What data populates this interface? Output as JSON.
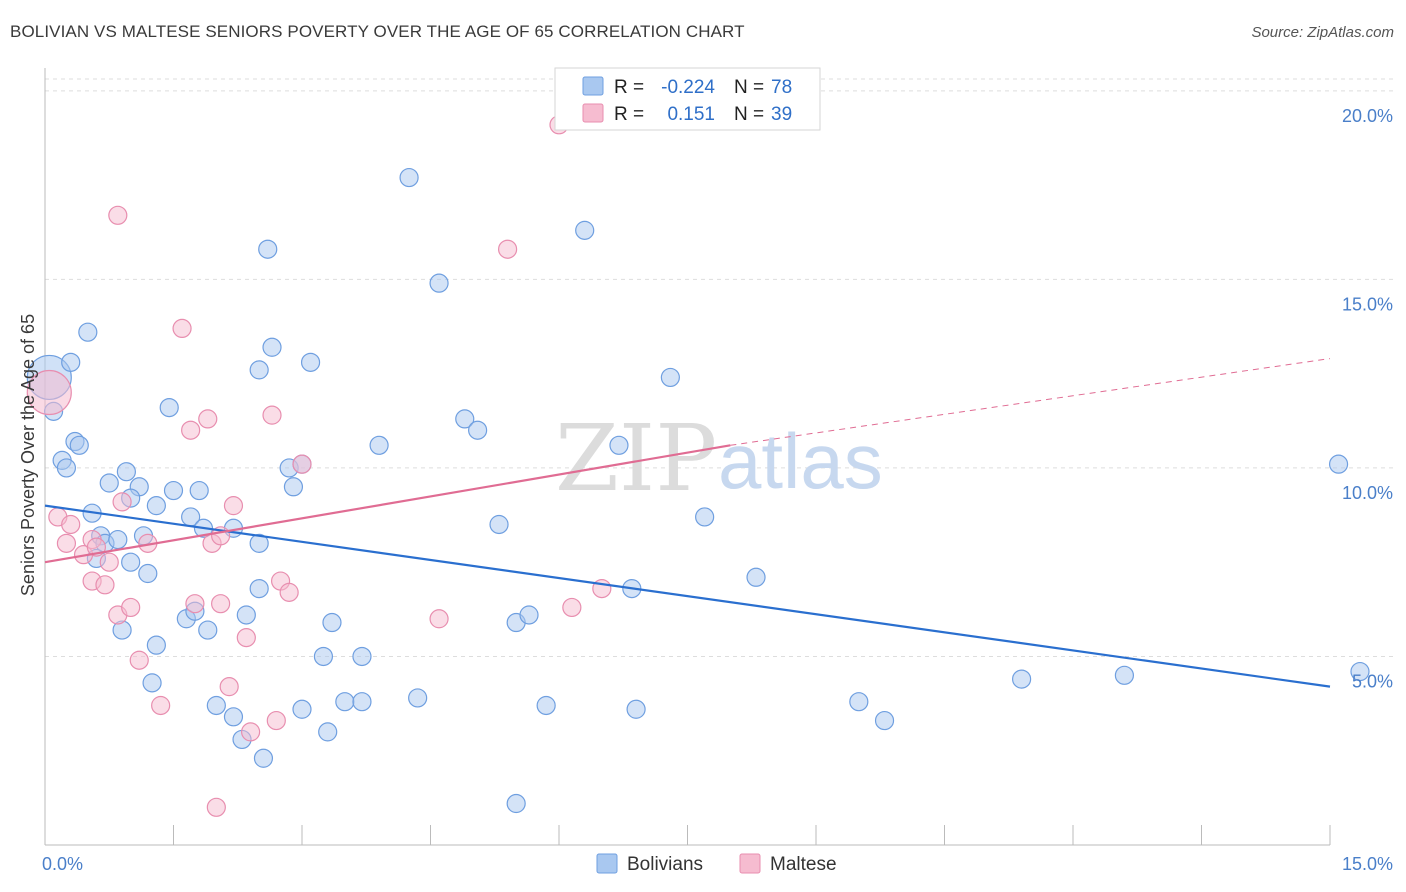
{
  "title": "BOLIVIAN VS MALTESE SENIORS POVERTY OVER THE AGE OF 65 CORRELATION CHART",
  "source": "Source: ZipAtlas.com",
  "watermark": {
    "zip": "ZIP",
    "atlas": "atlas"
  },
  "colors": {
    "bolivians_fill": "#a9c8f0",
    "bolivians_stroke": "#6f9fe0",
    "bolivians_line": "#2a6fcf",
    "maltese_fill": "#f6bcd0",
    "maltese_stroke": "#e88eaf",
    "maltese_line": "#e06c93",
    "grid": "#dddddd",
    "tick_text": "#4a7fc9"
  },
  "legend": {
    "rows": [
      {
        "r_label": "R =",
        "r_value": "-0.224",
        "n_label": "N =",
        "n_value": "78"
      },
      {
        "r_label": "R =",
        "r_value": "0.151",
        "n_label": "N =",
        "n_value": "39"
      }
    ]
  },
  "bottom_legend": {
    "bolivians": "Bolivians",
    "maltese": "Maltese"
  },
  "chart_data": {
    "type": "scatter",
    "ylabel": "Seniors Poverty Over the Age of 65",
    "xlim": [
      0,
      15
    ],
    "ylim": [
      0,
      20.5
    ],
    "x_tick_labels": [
      "0.0%",
      "15.0%"
    ],
    "y_ticks": [
      {
        "value": 5,
        "label": "5.0%"
      },
      {
        "value": 10,
        "label": "10.0%"
      },
      {
        "value": 15,
        "label": "15.0%"
      },
      {
        "value": 20,
        "label": "20.0%"
      }
    ],
    "grid": true,
    "legend_position": "top-center",
    "series": [
      {
        "name": "Bolivians",
        "trend": {
          "x0": 0,
          "y0": 9.0,
          "x1": 15,
          "y1": 4.2,
          "dashed_from": null
        },
        "points": [
          {
            "x": 0.05,
            "y": 12.4,
            "big": true
          },
          {
            "x": 0.1,
            "y": 11.5
          },
          {
            "x": 0.3,
            "y": 12.8
          },
          {
            "x": 0.5,
            "y": 13.6
          },
          {
            "x": 0.2,
            "y": 10.2
          },
          {
            "x": 0.35,
            "y": 10.7
          },
          {
            "x": 0.4,
            "y": 10.6
          },
          {
            "x": 0.25,
            "y": 10.0
          },
          {
            "x": 0.55,
            "y": 8.8
          },
          {
            "x": 0.75,
            "y": 9.6
          },
          {
            "x": 0.65,
            "y": 8.2
          },
          {
            "x": 0.7,
            "y": 8.0
          },
          {
            "x": 0.85,
            "y": 8.1
          },
          {
            "x": 0.95,
            "y": 9.9
          },
          {
            "x": 1.1,
            "y": 9.5
          },
          {
            "x": 1.15,
            "y": 8.2
          },
          {
            "x": 1.0,
            "y": 9.2
          },
          {
            "x": 0.6,
            "y": 7.6
          },
          {
            "x": 1.0,
            "y": 7.5
          },
          {
            "x": 1.45,
            "y": 11.6
          },
          {
            "x": 1.5,
            "y": 9.4
          },
          {
            "x": 1.3,
            "y": 9.0
          },
          {
            "x": 1.8,
            "y": 9.4
          },
          {
            "x": 1.7,
            "y": 8.7
          },
          {
            "x": 1.85,
            "y": 8.4
          },
          {
            "x": 1.2,
            "y": 7.2
          },
          {
            "x": 0.9,
            "y": 5.7
          },
          {
            "x": 1.3,
            "y": 5.3
          },
          {
            "x": 1.25,
            "y": 4.3
          },
          {
            "x": 1.65,
            "y": 6.0
          },
          {
            "x": 1.9,
            "y": 5.7
          },
          {
            "x": 2.2,
            "y": 8.4
          },
          {
            "x": 2.5,
            "y": 8.0
          },
          {
            "x": 2.5,
            "y": 6.8
          },
          {
            "x": 2.35,
            "y": 6.1
          },
          {
            "x": 2.5,
            "y": 12.6
          },
          {
            "x": 2.6,
            "y": 15.8
          },
          {
            "x": 2.65,
            "y": 13.2
          },
          {
            "x": 2.85,
            "y": 10.0
          },
          {
            "x": 2.9,
            "y": 9.5
          },
          {
            "x": 3.0,
            "y": 10.1
          },
          {
            "x": 3.1,
            "y": 12.8
          },
          {
            "x": 3.25,
            "y": 5.0
          },
          {
            "x": 3.35,
            "y": 5.9
          },
          {
            "x": 3.7,
            "y": 5.0
          },
          {
            "x": 3.5,
            "y": 3.8
          },
          {
            "x": 3.7,
            "y": 3.8
          },
          {
            "x": 2.0,
            "y": 3.7
          },
          {
            "x": 2.2,
            "y": 3.4
          },
          {
            "x": 2.3,
            "y": 2.8
          },
          {
            "x": 2.55,
            "y": 2.3
          },
          {
            "x": 3.0,
            "y": 3.6
          },
          {
            "x": 3.3,
            "y": 3.0
          },
          {
            "x": 3.9,
            "y": 10.6
          },
          {
            "x": 4.25,
            "y": 17.7
          },
          {
            "x": 4.6,
            "y": 14.9
          },
          {
            "x": 4.9,
            "y": 11.3
          },
          {
            "x": 5.05,
            "y": 11.0
          },
          {
            "x": 5.3,
            "y": 8.5
          },
          {
            "x": 5.5,
            "y": 5.9
          },
          {
            "x": 5.65,
            "y": 6.1
          },
          {
            "x": 5.85,
            "y": 3.7
          },
          {
            "x": 5.5,
            "y": 1.1
          },
          {
            "x": 6.3,
            "y": 16.3
          },
          {
            "x": 6.7,
            "y": 10.6
          },
          {
            "x": 6.85,
            "y": 6.8
          },
          {
            "x": 6.9,
            "y": 3.6
          },
          {
            "x": 7.3,
            "y": 12.4
          },
          {
            "x": 7.7,
            "y": 8.7
          },
          {
            "x": 8.3,
            "y": 7.1
          },
          {
            "x": 9.5,
            "y": 3.8
          },
          {
            "x": 9.8,
            "y": 3.3
          },
          {
            "x": 11.4,
            "y": 4.4
          },
          {
            "x": 12.6,
            "y": 4.5
          },
          {
            "x": 15.1,
            "y": 10.1
          },
          {
            "x": 15.35,
            "y": 4.6
          },
          {
            "x": 4.35,
            "y": 3.9
          },
          {
            "x": 1.75,
            "y": 6.2
          }
        ]
      },
      {
        "name": "Maltese",
        "trend": {
          "x0": 0,
          "y0": 7.5,
          "x1": 8.0,
          "y1": 10.6,
          "dashed_to_x": 15,
          "dashed_to_y": 12.9
        },
        "points": [
          {
            "x": 0.05,
            "y": 12.0,
            "big": true
          },
          {
            "x": 0.15,
            "y": 8.7
          },
          {
            "x": 0.25,
            "y": 8.0
          },
          {
            "x": 0.3,
            "y": 8.5
          },
          {
            "x": 0.45,
            "y": 7.7
          },
          {
            "x": 0.55,
            "y": 8.1
          },
          {
            "x": 0.6,
            "y": 7.9
          },
          {
            "x": 0.75,
            "y": 7.5
          },
          {
            "x": 0.55,
            "y": 7.0
          },
          {
            "x": 0.7,
            "y": 6.9
          },
          {
            "x": 0.9,
            "y": 9.1
          },
          {
            "x": 0.85,
            "y": 6.1
          },
          {
            "x": 1.0,
            "y": 6.3
          },
          {
            "x": 1.1,
            "y": 4.9
          },
          {
            "x": 1.2,
            "y": 8.0
          },
          {
            "x": 1.35,
            "y": 3.7
          },
          {
            "x": 0.85,
            "y": 16.7
          },
          {
            "x": 1.6,
            "y": 13.7
          },
          {
            "x": 1.7,
            "y": 11.0
          },
          {
            "x": 1.9,
            "y": 11.3
          },
          {
            "x": 1.95,
            "y": 8.0
          },
          {
            "x": 1.75,
            "y": 6.4
          },
          {
            "x": 2.05,
            "y": 6.4
          },
          {
            "x": 2.05,
            "y": 8.2
          },
          {
            "x": 2.2,
            "y": 9.0
          },
          {
            "x": 2.15,
            "y": 4.2
          },
          {
            "x": 2.0,
            "y": 1.0
          },
          {
            "x": 2.35,
            "y": 5.5
          },
          {
            "x": 2.65,
            "y": 11.4
          },
          {
            "x": 2.75,
            "y": 7.0
          },
          {
            "x": 2.85,
            "y": 6.7
          },
          {
            "x": 2.7,
            "y": 3.3
          },
          {
            "x": 2.4,
            "y": 3.0
          },
          {
            "x": 3.0,
            "y": 10.1
          },
          {
            "x": 4.6,
            "y": 6.0
          },
          {
            "x": 5.4,
            "y": 15.8
          },
          {
            "x": 6.0,
            "y": 19.1
          },
          {
            "x": 6.15,
            "y": 6.3
          },
          {
            "x": 6.5,
            "y": 6.8
          }
        ]
      }
    ]
  }
}
